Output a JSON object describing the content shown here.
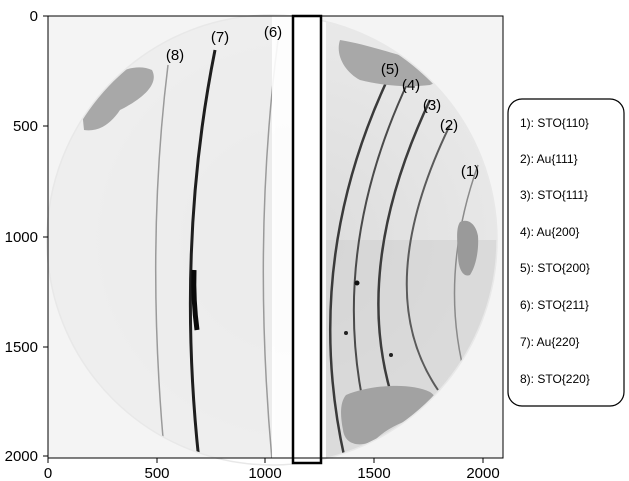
{
  "axes": {
    "x_ticks": [
      "0",
      "500",
      "1000",
      "1500",
      "2000"
    ],
    "y_ticks": [
      "0",
      "500",
      "1000",
      "1500",
      "2000"
    ]
  },
  "ring_labels": [
    "(1)",
    "(2)",
    "(3)",
    "(4)",
    "(5)",
    "(6)",
    "(7)",
    "(8)"
  ],
  "legend": {
    "items": [
      "1): STO{110}",
      "2): Au{111}",
      "3): STO{111}",
      "4): Au{200}",
      "5): STO{200}",
      "6): STO{211}",
      "7): Au{220}",
      "8): STO{220}"
    ]
  }
}
